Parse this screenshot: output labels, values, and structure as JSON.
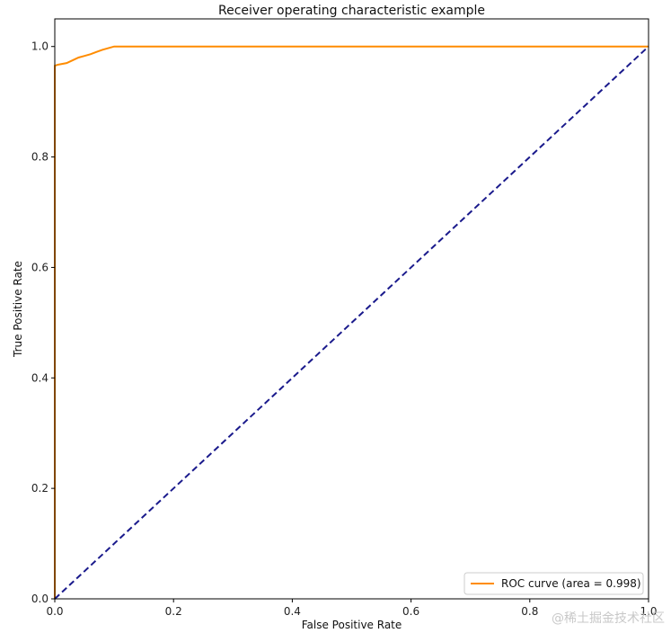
{
  "chart_data": {
    "type": "line",
    "title": "Receiver operating characteristic example",
    "xlabel": "False Positive Rate",
    "ylabel": "True Positive Rate",
    "xlim": [
      0.0,
      1.0
    ],
    "ylim": [
      0.0,
      1.05
    ],
    "xticks": [
      0.0,
      0.2,
      0.4,
      0.6,
      0.8,
      1.0
    ],
    "yticks": [
      0.0,
      0.2,
      0.4,
      0.6,
      0.8,
      1.0
    ],
    "tick_labels": [
      "0.0",
      "0.2",
      "0.4",
      "0.6",
      "0.8",
      "1.0"
    ],
    "grid": false,
    "legend_position": "lower-right",
    "series": [
      {
        "name": "ROC curve (area = 0.998)",
        "color": "#ff8c00",
        "style": "solid",
        "x": [
          0.0,
          0.0,
          0.005,
          0.01,
          0.02,
          0.03,
          0.04,
          0.05,
          0.06,
          0.07,
          0.08,
          0.09,
          0.1,
          0.2,
          0.4,
          0.6,
          0.8,
          1.0
        ],
        "y": [
          0.0,
          0.965,
          0.967,
          0.968,
          0.97,
          0.975,
          0.98,
          0.983,
          0.986,
          0.99,
          0.994,
          0.997,
          1.0,
          1.0,
          1.0,
          1.0,
          1.0,
          1.0
        ]
      },
      {
        "color": "#1a1a8c",
        "style": "dashed",
        "x": [
          0.0,
          1.0
        ],
        "y": [
          0.0,
          1.0
        ]
      }
    ]
  },
  "watermark": "@稀土掘金技术社区"
}
